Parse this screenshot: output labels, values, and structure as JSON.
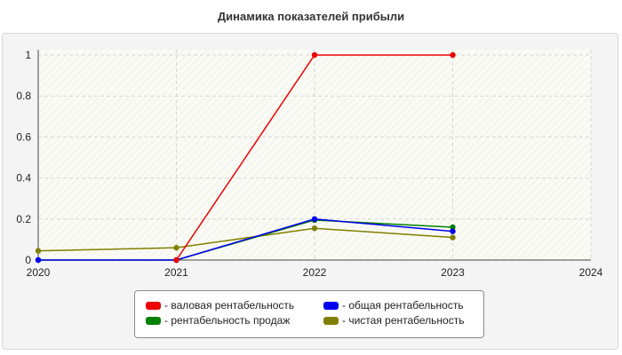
{
  "title": "Динамика показателей прибыли",
  "chart_data": {
    "type": "line",
    "title": "Динамика показателей прибыли",
    "xlabel": "",
    "ylabel": "",
    "x": [
      2020,
      2021,
      2022,
      2023,
      2024
    ],
    "xlim": [
      2020,
      2024
    ],
    "ylim": [
      0,
      1
    ],
    "yticks": [
      0,
      0.2,
      0.4,
      0.6,
      0.8,
      1
    ],
    "ytick_labels": [
      "0",
      "0.2",
      "0.4",
      "0.6",
      "0.8",
      "1"
    ],
    "xtick_labels": [
      "2020",
      "2021",
      "2022",
      "2023",
      "2024"
    ],
    "grid": true,
    "legend_position": "bottom",
    "series": [
      {
        "name": "- валовая рентабельность",
        "color": "#ee0000",
        "points": [
          [
            2021,
            0
          ],
          [
            2022,
            1
          ],
          [
            2023,
            1
          ]
        ]
      },
      {
        "name": "- общая рентабельность",
        "color": "#0000ee",
        "points": [
          [
            2020,
            0
          ],
          [
            2021,
            0
          ],
          [
            2022,
            0.2
          ],
          [
            2023,
            0.14
          ]
        ]
      },
      {
        "name": "- рентабельность продаж",
        "color": "#008000",
        "points": [
          [
            2020,
            0
          ],
          [
            2021,
            0
          ],
          [
            2022,
            0.195
          ],
          [
            2023,
            0.16
          ]
        ]
      },
      {
        "name": "- чистая рентабельность",
        "color": "#808000",
        "points": [
          [
            2020,
            0.045
          ],
          [
            2021,
            0.06
          ],
          [
            2022,
            0.155
          ],
          [
            2023,
            0.11
          ]
        ]
      }
    ]
  }
}
